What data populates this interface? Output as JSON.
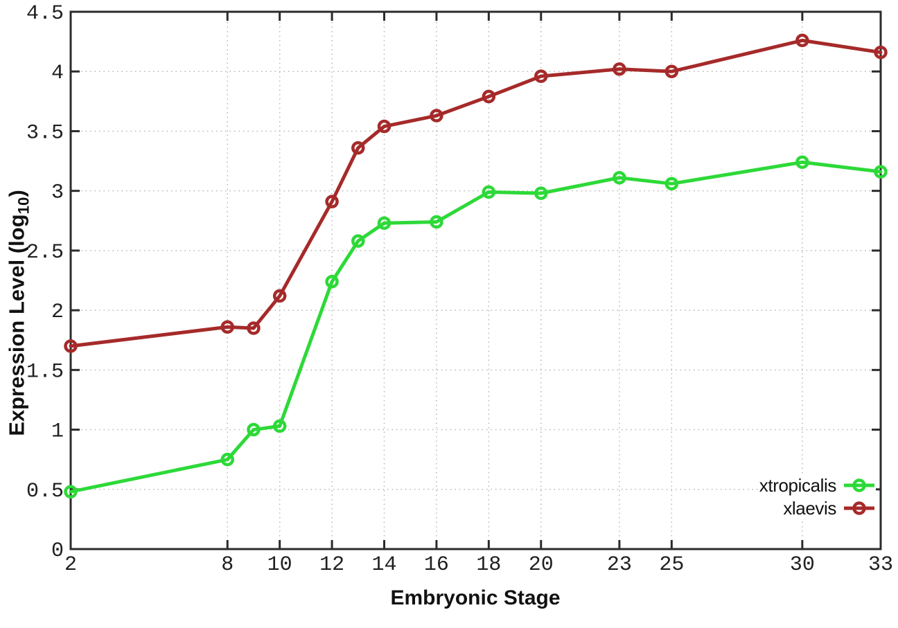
{
  "figure": {
    "background": "#ffffff",
    "border_color": "#2b2b2b",
    "grid_color": "#b5b5b5",
    "tick_text_color": "#1f1f1f"
  },
  "chart_data": {
    "type": "line",
    "title": "",
    "xlabel": "Embryonic Stage",
    "ylabel": "Expression Level (log10)",
    "ylabel_parts": {
      "main": "Expression Level (log",
      "sub": "10",
      "end": ")"
    },
    "x": [
      2,
      8,
      9,
      10,
      12,
      13,
      14,
      16,
      18,
      20,
      23,
      25,
      30,
      33
    ],
    "xtick_values": [
      2,
      8,
      10,
      12,
      14,
      16,
      18,
      20,
      23,
      25,
      30,
      33
    ],
    "xtick_labels": [
      "2",
      "8",
      "10",
      "12",
      "14",
      "16",
      "18",
      "20",
      "23",
      "25",
      "30",
      "33"
    ],
    "ytick_values": [
      0,
      0.5,
      1,
      1.5,
      2,
      2.5,
      3,
      3.5,
      4,
      4.5
    ],
    "ytick_labels": [
      "0",
      "0.5",
      "1",
      "1.5",
      "2",
      "2.5",
      "3",
      "3.5",
      "4",
      "4.5"
    ],
    "xlim": [
      2,
      33
    ],
    "ylim": [
      0,
      4.5
    ],
    "grid": true,
    "grid_style": "dotted",
    "legend_position": "bottom-right",
    "series": [
      {
        "name": "xtropicalis",
        "color": "#2dd938",
        "values": [
          0.48,
          0.75,
          1.0,
          1.03,
          2.24,
          2.58,
          2.73,
          2.74,
          2.99,
          2.98,
          3.11,
          3.06,
          3.24,
          3.16
        ]
      },
      {
        "name": "xlaevis",
        "color": "#a62a2a",
        "values": [
          1.7,
          1.86,
          1.85,
          2.12,
          2.91,
          3.36,
          3.54,
          3.63,
          3.79,
          3.96,
          4.02,
          4.0,
          4.26,
          4.16
        ]
      }
    ]
  }
}
